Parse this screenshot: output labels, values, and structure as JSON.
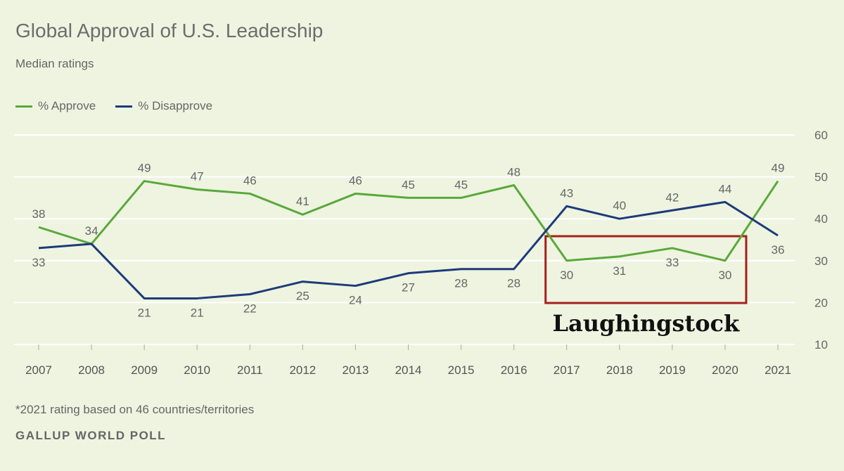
{
  "title": "Global Approval of U.S. Leadership",
  "subtitle": "Median ratings",
  "footnote": "*2021 rating based on 46 countries/territories",
  "source": "GALLUP WORLD POLL",
  "annotation": "Laughingstock",
  "colors": {
    "approve": "#5aa83a",
    "disapprove": "#1d3a7a",
    "grid": "#ffffff",
    "box": "#a5201d"
  },
  "chart_data": {
    "type": "line",
    "categories": [
      "2007",
      "2008",
      "2009",
      "2010",
      "2011",
      "2012",
      "2013",
      "2014",
      "2015",
      "2016",
      "2017",
      "2018",
      "2019",
      "2020",
      "2021"
    ],
    "series": [
      {
        "name": "% Approve",
        "values": [
          38,
          34,
          49,
          47,
          46,
          41,
          46,
          45,
          45,
          48,
          30,
          31,
          33,
          30,
          49
        ]
      },
      {
        "name": "% Disapprove",
        "values": [
          33,
          34,
          21,
          21,
          22,
          25,
          24,
          27,
          28,
          28,
          43,
          40,
          42,
          44,
          36
        ]
      }
    ],
    "yticks": [
      10,
      20,
      30,
      40,
      50,
      60
    ],
    "ylim": [
      10,
      60
    ],
    "y_axis_side": "right",
    "legend": "top-left",
    "highlight": {
      "from": "2017",
      "to": "2020",
      "label": "Laughingstock"
    }
  }
}
